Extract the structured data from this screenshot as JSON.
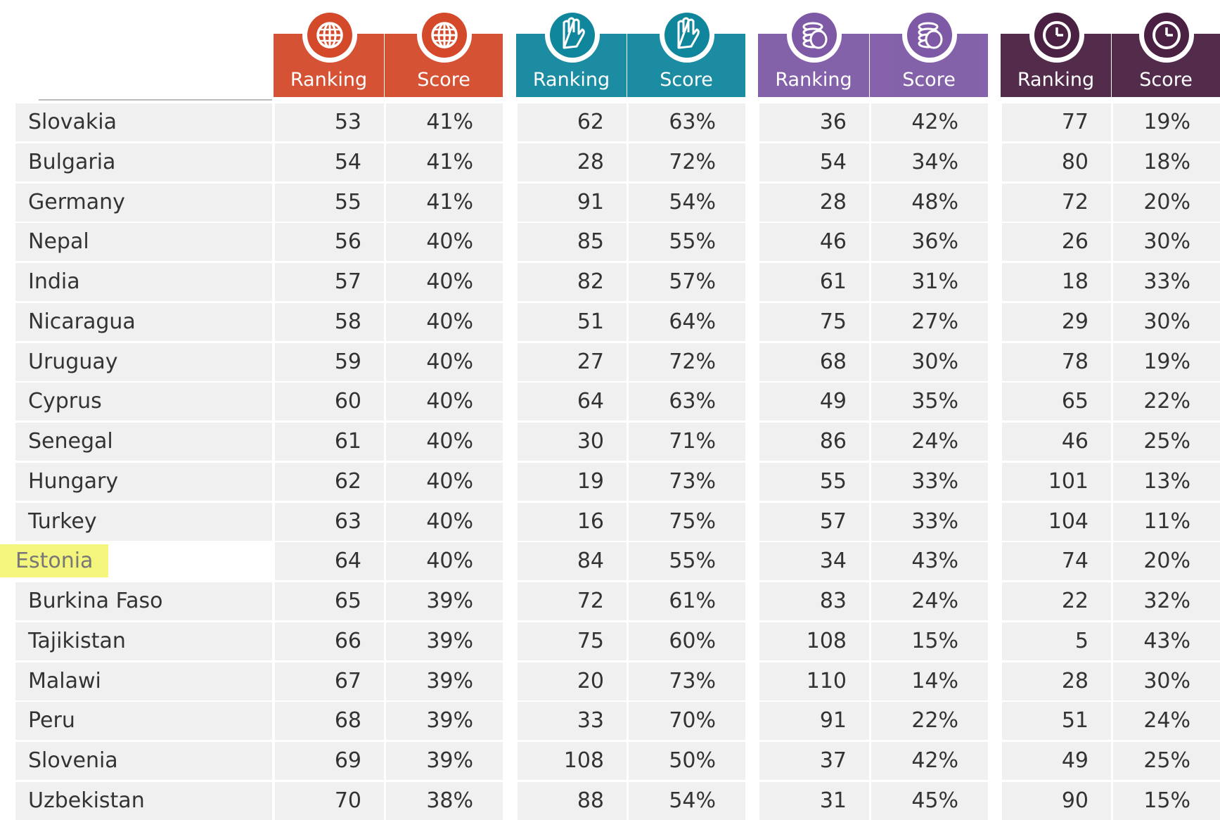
{
  "header": [
    [
      "Ranking",
      "Score"
    ],
    [
      "Ranking",
      "Score"
    ],
    [
      "Ranking",
      "Score"
    ],
    [
      "Ranking",
      "Score"
    ]
  ],
  "colors": [
    "#d4492a",
    "#0f869c",
    "#7e5aa6",
    "#4a2143"
  ],
  "rows": [
    {
      "country": "Slovakia",
      "values": [
        53,
        "41%",
        62,
        "63%",
        36,
        "42%",
        77,
        "19%"
      ]
    },
    {
      "country": "Bulgaria",
      "values": [
        54,
        "41%",
        28,
        "72%",
        54,
        "34%",
        80,
        "18%"
      ]
    },
    {
      "country": "Germany",
      "values": [
        55,
        "41%",
        91,
        "54%",
        28,
        "48%",
        72,
        "20%"
      ]
    },
    {
      "country": "Nepal",
      "values": [
        56,
        "40%",
        85,
        "55%",
        46,
        "36%",
        26,
        "30%"
      ]
    },
    {
      "country": "India",
      "values": [
        57,
        "40%",
        82,
        "57%",
        61,
        "31%",
        18,
        "33%"
      ]
    },
    {
      "country": "Nicaragua",
      "values": [
        58,
        "40%",
        51,
        "64%",
        75,
        "27%",
        29,
        "30%"
      ]
    },
    {
      "country": "Uruguay",
      "values": [
        59,
        "40%",
        27,
        "72%",
        68,
        "30%",
        78,
        "19%"
      ]
    },
    {
      "country": "Cyprus",
      "values": [
        60,
        "40%",
        64,
        "63%",
        49,
        "35%",
        65,
        "22%"
      ]
    },
    {
      "country": "Senegal",
      "values": [
        61,
        "40%",
        30,
        "71%",
        86,
        "24%",
        46,
        "25%"
      ]
    },
    {
      "country": "Hungary",
      "values": [
        62,
        "40%",
        19,
        "73%",
        55,
        "33%",
        101,
        "13%"
      ]
    },
    {
      "country": "Turkey",
      "values": [
        63,
        "40%",
        16,
        "75%",
        57,
        "33%",
        104,
        "11%"
      ]
    },
    {
      "country": "Estonia",
      "values": [
        64,
        "40%",
        84,
        "55%",
        34,
        "43%",
        74,
        "20%"
      ],
      "highlighted": true
    },
    {
      "country": "Burkina Faso",
      "values": [
        65,
        "39%",
        72,
        "61%",
        83,
        "24%",
        22,
        "32%"
      ]
    },
    {
      "country": "Tajikistan",
      "values": [
        66,
        "39%",
        75,
        "60%",
        108,
        "15%",
        5,
        "43%"
      ]
    },
    {
      "country": "Malawi",
      "values": [
        67,
        "39%",
        20,
        "73%",
        110,
        "14%",
        28,
        "30%"
      ]
    },
    {
      "country": "Peru",
      "values": [
        68,
        "39%",
        33,
        "70%",
        91,
        "22%",
        51,
        "24%"
      ]
    },
    {
      "country": "Slovenia",
      "values": [
        69,
        "39%",
        108,
        "50%",
        37,
        "42%",
        49,
        "25%"
      ]
    },
    {
      "country": "Uzbekistan",
      "values": [
        70,
        "38%",
        88,
        "54%",
        31,
        "45%",
        90,
        "15%"
      ]
    }
  ]
}
